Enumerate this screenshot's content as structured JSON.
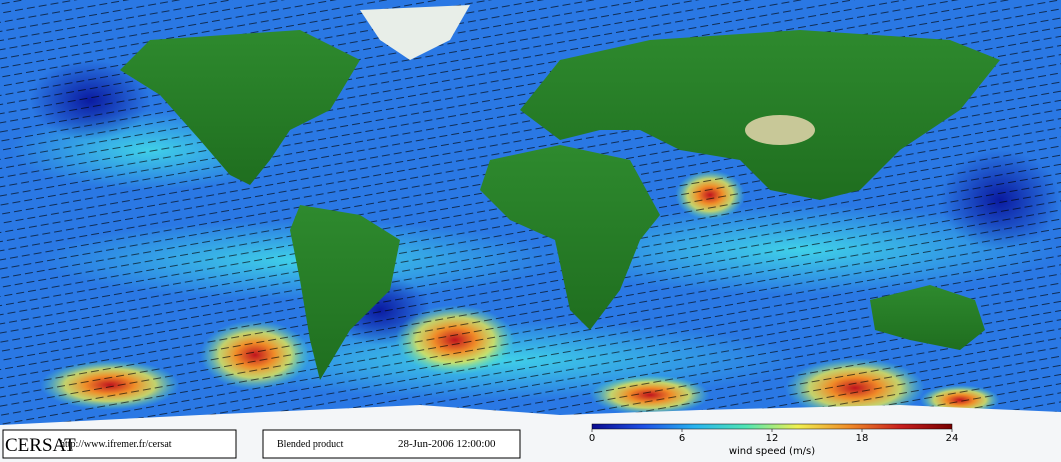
{
  "footer": {
    "logo": "CERSAT",
    "url": "http://www.ifremer.fr/cersat",
    "product": "Blended product",
    "date": "28-Jun-2006 12:00:00"
  },
  "colorbar": {
    "label": "wind speed (m/s)",
    "lim": [
      0,
      24
    ],
    "ticks": [
      0,
      6,
      12,
      18,
      24
    ],
    "colors": [
      "#0a0a90",
      "#1e50e6",
      "#28b4f0",
      "#50e6b4",
      "#f0f050",
      "#f08c28",
      "#c81e1e",
      "#780000"
    ]
  }
}
